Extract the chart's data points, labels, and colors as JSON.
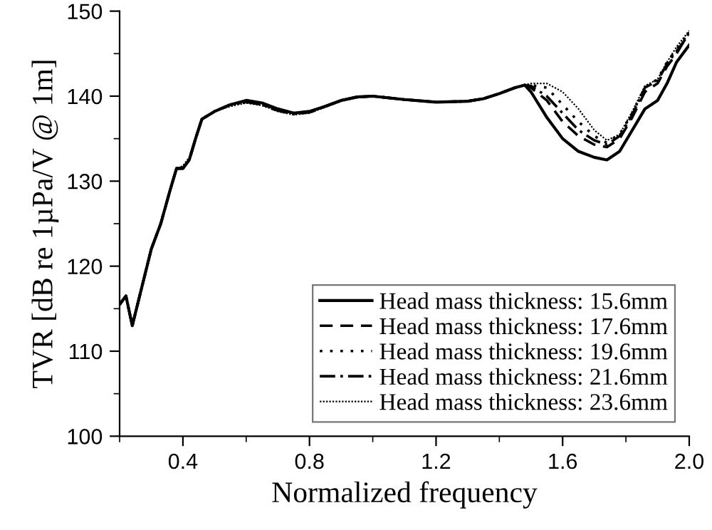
{
  "chart_data": {
    "type": "line",
    "xlabel": "Normalized frequency",
    "ylabel": "TVR [dB re 1µPa/V @ 1m]",
    "x": [
      0.2,
      0.22,
      0.24,
      0.26,
      0.28,
      0.3,
      0.33,
      0.36,
      0.38,
      0.4,
      0.42,
      0.44,
      0.46,
      0.5,
      0.55,
      0.6,
      0.65,
      0.7,
      0.75,
      0.8,
      0.85,
      0.9,
      0.95,
      1.0,
      1.1,
      1.2,
      1.3,
      1.35,
      1.4,
      1.45,
      1.48,
      1.5,
      1.55,
      1.6,
      1.65,
      1.7,
      1.74,
      1.78,
      1.82,
      1.86,
      1.88,
      1.9,
      1.93,
      1.96,
      2.0
    ],
    "series": [
      {
        "name": "Head mass thickness: 15.6mm",
        "color": "#000000",
        "line_style": "solid",
        "values": [
          115.5,
          116.5,
          113,
          116,
          119,
          122,
          125,
          129,
          131.5,
          131.5,
          132.5,
          135,
          137.3,
          138.2,
          139,
          139.5,
          139.2,
          138.5,
          138,
          138.2,
          138.8,
          139.5,
          139.9,
          140,
          139.6,
          139.3,
          139.4,
          139.7,
          140.3,
          141,
          141.3,
          140.5,
          137.5,
          135,
          133.5,
          132.8,
          132.5,
          133.5,
          136,
          138.5,
          139,
          139.5,
          141.5,
          144,
          146
        ]
      },
      {
        "name": "Head mass thickness: 17.6mm",
        "color": "#000000",
        "line_style": "dashed",
        "values": [
          115.5,
          116.5,
          113,
          116,
          119,
          122,
          125,
          129,
          131.5,
          131.5,
          132.5,
          135,
          137.3,
          138.2,
          139,
          139.4,
          139.1,
          138.4,
          138,
          138.2,
          138.8,
          139.5,
          139.9,
          140,
          139.6,
          139.3,
          139.4,
          139.7,
          140.3,
          141,
          141.3,
          141,
          139.5,
          137,
          135.3,
          134.3,
          134,
          135,
          137.5,
          140.5,
          141,
          141.5,
          143.5,
          145,
          147.5
        ]
      },
      {
        "name": "Head mass thickness: 19.6mm",
        "color": "#000000",
        "line_style": "dotted",
        "values": [
          115.5,
          116.5,
          113,
          116,
          119,
          122,
          125,
          129,
          131.5,
          131.5,
          132.5,
          135,
          137.3,
          138.2,
          139,
          139.3,
          139,
          138.3,
          137.9,
          138.1,
          138.8,
          139.5,
          139.9,
          140,
          139.6,
          139.3,
          139.4,
          139.7,
          140.3,
          141,
          141.3,
          141.3,
          141,
          139,
          137,
          135.3,
          134.5,
          135.5,
          138,
          141,
          141.5,
          142,
          144,
          145.5,
          147.5
        ]
      },
      {
        "name": "Head mass thickness: 21.6mm",
        "color": "#000000",
        "line_style": "dashdot",
        "values": [
          115.5,
          116.5,
          113,
          116,
          119,
          122,
          125,
          129,
          131.5,
          131.5,
          132.5,
          135,
          137.3,
          138.2,
          139,
          139.3,
          139,
          138.3,
          137.9,
          138.1,
          138.8,
          139.5,
          139.9,
          140,
          139.6,
          139.3,
          139.4,
          139.7,
          140.3,
          141,
          141.3,
          141.2,
          140,
          138,
          136,
          134.8,
          134.3,
          135.3,
          137.8,
          141,
          141.4,
          141.8,
          143.8,
          145.3,
          147.3
        ]
      },
      {
        "name": "Head mass thickness: 23.6mm",
        "color": "#000000",
        "line_style": "densely_dotted",
        "values": [
          115.5,
          116.5,
          113,
          116,
          119,
          122,
          125,
          129,
          131.5,
          131.8,
          132.8,
          135,
          137.3,
          138.2,
          138.8,
          139.2,
          138.9,
          138.2,
          137.8,
          138,
          138.7,
          139.4,
          139.8,
          140,
          139.6,
          139.3,
          139.4,
          139.7,
          140.3,
          141,
          141.3,
          141.5,
          141.5,
          140.5,
          138.5,
          136,
          134.8,
          135.5,
          138.2,
          141.2,
          141.6,
          142,
          144,
          145.8,
          147.7
        ]
      }
    ],
    "xlim": [
      0.2,
      2.0
    ],
    "ylim": [
      100,
      150
    ],
    "xticks": [
      {
        "value": 0.2,
        "label": null
      },
      0.4,
      {
        "value": 0.6,
        "label": null
      },
      0.8,
      {
        "value": 1.0,
        "label": null
      },
      1.2,
      {
        "value": 1.4,
        "label": null
      },
      1.6,
      {
        "value": 1.8,
        "label": null
      },
      {
        "value": 2.0,
        "label": "2.0"
      }
    ],
    "yticks": [
      100,
      {
        "value": 105,
        "label": null
      },
      110,
      {
        "value": 115,
        "label": null
      },
      120,
      {
        "value": 125,
        "label": null
      },
      130,
      {
        "value": 135,
        "label": null
      },
      140,
      {
        "value": 145,
        "label": null
      },
      150
    ],
    "legend": "bottom right",
    "grid": false
  }
}
